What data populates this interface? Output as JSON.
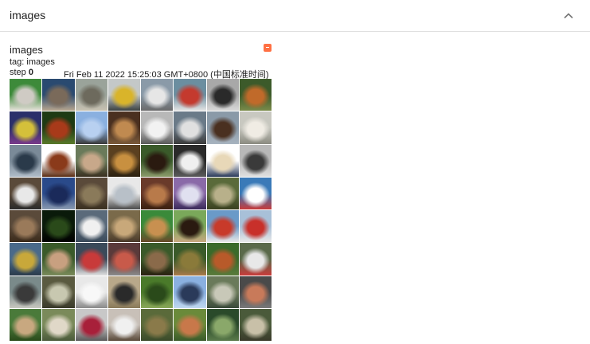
{
  "panel": {
    "title": "images",
    "collapse_icon": "chevron-up-icon"
  },
  "card": {
    "title": "images",
    "tag_label": "tag: images",
    "step_label": "step",
    "step_value": "0",
    "timestamp": "Fri Feb 11 2022 15:25:03 GMT+0800 (中国标准时间)",
    "run_color": "#ff7043"
  },
  "grid": {
    "tiles": [
      [
        "#3d8a3a",
        "#cfcbc4",
        "#e8e2dc"
      ],
      [
        "#2a4a70",
        "#7a6a5a",
        "#b8a68e"
      ],
      [
        "#9aa39a",
        "#6d6a5d",
        "#c8c2b2"
      ],
      [
        "#c4c8c8",
        "#d9b42a",
        "#3a4040"
      ],
      [
        "#8a9aa8",
        "#e6e6e6",
        "#6a6a6a"
      ],
      [
        "#6b8ea0",
        "#c43a2e",
        "#e4e4e4"
      ],
      [
        "#a8a8a8",
        "#2a2a2a",
        "#d8d8d8"
      ],
      [
        "#3c5a2a",
        "#c06a2a",
        "#7a8a4a"
      ],
      [
        "#2a2f6a",
        "#d4c03a",
        "#7a3a8a"
      ],
      [
        "#1e3a14",
        "#a83a1a",
        "#5a7a2a"
      ],
      [
        "#8ab0e0",
        "#b8d0f0",
        "#3a3a3a"
      ],
      [
        "#4a3020",
        "#c08a50",
        "#7a5a3a"
      ],
      [
        "#b8b8b8",
        "#f2f2f2",
        "#5a5a5a"
      ],
      [
        "#6a7a88",
        "#e0e0e0",
        "#3a3a3a"
      ],
      [
        "#8a9aa8",
        "#4a3020",
        "#a8b4c0"
      ],
      [
        "#c8c8c0",
        "#f0ece4",
        "#8a8a80"
      ],
      [
        "#7a8a98",
        "#2a3a4a",
        "#b0bcc8"
      ],
      [
        "#ffffff",
        "#8a3a1a",
        "#5a2a10"
      ],
      [
        "#6a7a5a",
        "#c8a88a",
        "#3a3020"
      ],
      [
        "#5a4020",
        "#c89040",
        "#2a2010"
      ],
      [
        "#3a5a2a",
        "#2a1a10",
        "#8a9a6a"
      ],
      [
        "#2a2a2a",
        "#f0f0f0",
        "#5a5a5a"
      ],
      [
        "#ffffff",
        "#e8d8b8",
        "#2a3a5a"
      ],
      [
        "#b8b8b8",
        "#3a3a3a",
        "#e0e0e0"
      ],
      [
        "#5a4a3a",
        "#e8e8e8",
        "#2a2a2a"
      ],
      [
        "#2a4a8a",
        "#1a2a5a",
        "#8a9ab0"
      ],
      [
        "#5a4a3a",
        "#8a7a5a",
        "#3a3020"
      ],
      [
        "#e8e8e8",
        "#b8c0c8",
        "#4a4a4a"
      ],
      [
        "#6a3a2a",
        "#b87a4a",
        "#3a2010"
      ],
      [
        "#8a6aa8",
        "#e0e0f0",
        "#3a2a5a"
      ],
      [
        "#5a6a3a",
        "#b8b08a",
        "#3a4020"
      ],
      [
        "#3a7ab8",
        "#ffffff",
        "#c83a3a"
      ],
      [
        "#5a4a3a",
        "#9a7a5a",
        "#3a2a1a"
      ],
      [
        "#0a1a0a",
        "#2a4a1a",
        "#000000"
      ],
      [
        "#5a6a7a",
        "#f0f0f0",
        "#3a4a5a"
      ],
      [
        "#7a6a4a",
        "#c8a87a",
        "#4a3a2a"
      ],
      [
        "#3a8a3a",
        "#c89050",
        "#6a4a2a"
      ],
      [
        "#7aa85a",
        "#2a1a10",
        "#c8a880"
      ],
      [
        "#6a9ac8",
        "#c83a2a",
        "#e8e8e8"
      ],
      [
        "#a8c0d8",
        "#c8302a",
        "#e8e8e8"
      ],
      [
        "#4a6a8a",
        "#c8a83a",
        "#2a3a4a"
      ],
      [
        "#3a5a2a",
        "#c8a080",
        "#7a8a5a"
      ],
      [
        "#3a4a5a",
        "#c83a3a",
        "#e0e0e0"
      ],
      [
        "#5a3a3a",
        "#c85a4a",
        "#8a8a8a"
      ],
      [
        "#3a5a2a",
        "#8a6a4a",
        "#2a2010"
      ],
      [
        "#3a5a2a",
        "#8a7a3a",
        "#a87a4a"
      ],
      [
        "#3a6a2a",
        "#b85a2a",
        "#5a7a3a"
      ],
      [
        "#5a6a4a",
        "#e8e8e8",
        "#c83a3a"
      ],
      [
        "#7a8a8a",
        "#3a3a3a",
        "#c8c8c0"
      ],
      [
        "#5a5a40",
        "#c8c8b0",
        "#3a3a2a"
      ],
      [
        "#e8e8e8",
        "#f8f8f8",
        "#8a8a8a"
      ],
      [
        "#b8a88a",
        "#2a2a2a",
        "#8a7a5a"
      ],
      [
        "#4a7a2a",
        "#2a4a1a",
        "#8aa85a"
      ],
      [
        "#8ab0e0",
        "#2a3a5a",
        "#c0d8f0"
      ],
      [
        "#6a7a5a",
        "#c8c8b8",
        "#3a4a3a"
      ],
      [
        "#4a4a4a",
        "#c87a5a",
        "#7a7a7a"
      ],
      [
        "#4a7a3a",
        "#c8a880",
        "#2a4a1a"
      ],
      [
        "#7a8a5a",
        "#e0d8c8",
        "#4a5a3a"
      ],
      [
        "#c8c8c8",
        "#a8203a",
        "#5a5a5a"
      ],
      [
        "#c8c0b8",
        "#f0f0f0",
        "#5a4a3a"
      ],
      [
        "#5a6a3a",
        "#8a7a4a",
        "#3a4a2a"
      ],
      [
        "#6a8a3a",
        "#c8784a",
        "#3a5a2a"
      ],
      [
        "#2a4a2a",
        "#8aa86a",
        "#5a7a4a"
      ],
      [
        "#4a5a3a",
        "#c8c0a8",
        "#3a3a2a"
      ]
    ]
  }
}
